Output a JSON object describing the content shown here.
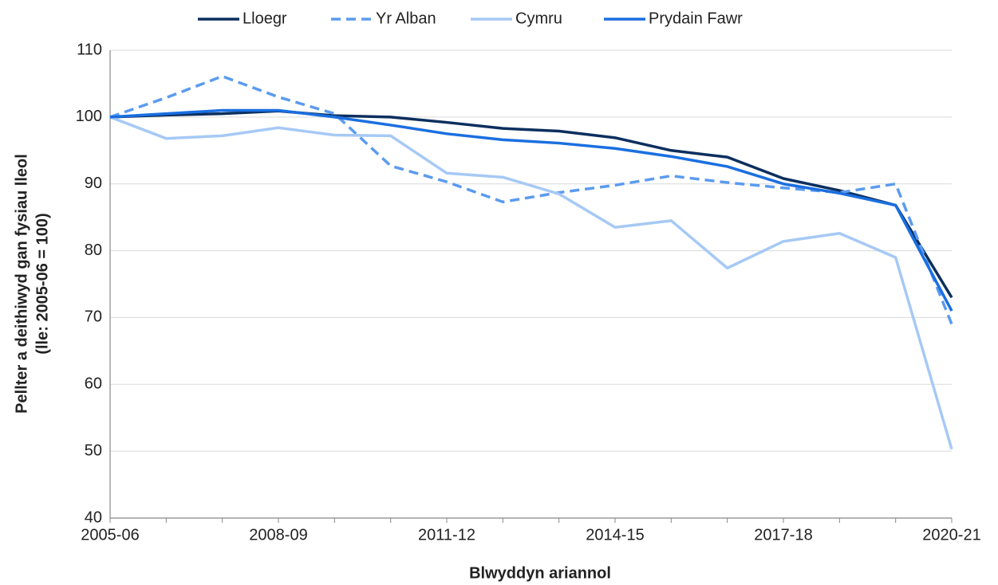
{
  "chart_data": {
    "type": "line",
    "x_label": "Blwyddyn ariannol",
    "y_label": [
      "Pellter a deithiwyd gan fysiau lleol",
      "(lle: 2005-06 = 100)"
    ],
    "categories": [
      "2005-06",
      null,
      null,
      "2008-09",
      null,
      null,
      "2011-12",
      null,
      null,
      "2014-15",
      null,
      null,
      "2017-18",
      null,
      null,
      "2020-21"
    ],
    "series": [
      {
        "name": "Lloegr",
        "color": "#0b2f5e",
        "dash": false,
        "values": [
          100,
          100.3,
          100.5,
          100.9,
          100.2,
          100,
          99.2,
          98.3,
          97.9,
          96.9,
          95,
          94,
          90.8,
          89,
          86.8,
          73
        ]
      },
      {
        "name": "Yr Alban",
        "color": "#5b9bef",
        "dash": true,
        "values": [
          100,
          102.9,
          106.1,
          103,
          100.5,
          92.7,
          90.3,
          87.3,
          88.7,
          89.8,
          91.2,
          90.2,
          89.4,
          88.7,
          90,
          69
        ]
      },
      {
        "name": "Cymru",
        "color": "#a6c9f5",
        "dash": false,
        "values": [
          100,
          96.8,
          97.2,
          98.4,
          97.3,
          97.2,
          91.6,
          91,
          88.5,
          83.5,
          84.5,
          77.4,
          81.4,
          82.6,
          79,
          50.3
        ]
      },
      {
        "name": "Prydain Fawr",
        "color": "#1a6fe0",
        "dash": false,
        "values": [
          100,
          100.5,
          101,
          101,
          100,
          98.8,
          97.5,
          96.6,
          96.1,
          95.3,
          94.1,
          92.6,
          90,
          88.6,
          86.8,
          71
        ]
      }
    ],
    "ylim": [
      40,
      110
    ],
    "yticks": [
      40,
      50,
      60,
      70,
      80,
      90,
      100,
      110
    ],
    "grid": true,
    "legend": "top"
  }
}
